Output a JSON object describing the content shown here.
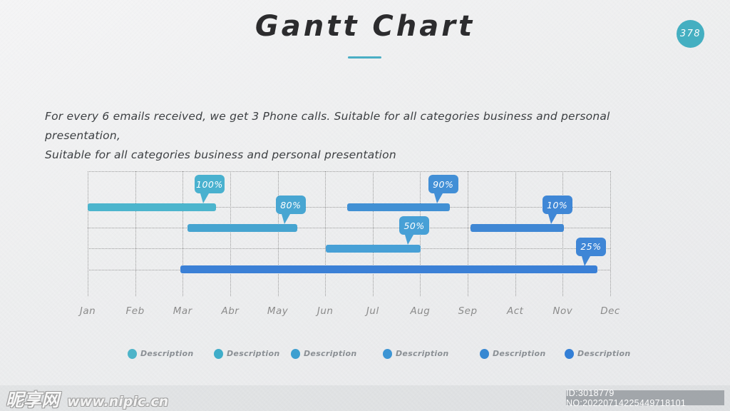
{
  "slide": {
    "title": "Gantt Chart",
    "page_badge": "378",
    "description_line1": "For every 6 emails received, we get 3 Phone calls. Suitable for all categories business and personal presentation,",
    "description_line2": "Suitable for all categories business and personal presentation",
    "accent_color": "#4aaec4"
  },
  "chart_data": {
    "type": "gantt",
    "title": "Gantt Chart",
    "months": [
      "Jan",
      "Feb",
      "Mar",
      "Abr",
      "May",
      "Jun",
      "Jul",
      "Aug",
      "Sep",
      "Act",
      "Nov",
      "Dec"
    ],
    "grid": {
      "rows": 4,
      "style": "dotted"
    },
    "bars": [
      {
        "label": "100%",
        "row": 1,
        "start": 0.0,
        "end": 2.7,
        "color": "#4cb5cd",
        "tooltip_color": "#49b1cf"
      },
      {
        "label": "80%",
        "row": 2,
        "start": 2.1,
        "end": 4.41,
        "color": "#46a4d0",
        "tooltip_color": "#48a6d2"
      },
      {
        "label": "90%",
        "row": 1,
        "start": 5.46,
        "end": 7.62,
        "color": "#4190d4",
        "tooltip_color": "#428fd6"
      },
      {
        "label": "50%",
        "row": 3,
        "start": 5.01,
        "end": 7.01,
        "color": "#47a0d6",
        "tooltip_color": "#47a0d6"
      },
      {
        "label": "10%",
        "row": 2,
        "start": 8.06,
        "end": 10.02,
        "color": "#3f87d4",
        "tooltip_color": "#3f87d6"
      },
      {
        "label": "25%",
        "row": 4,
        "start": 1.95,
        "end": 10.73,
        "color": "#3b80d6",
        "tooltip_color": "#3f86d6"
      }
    ],
    "legend": [
      {
        "label": "Description",
        "color": "#4db4c9"
      },
      {
        "label": "Description",
        "color": "#3fadc9"
      },
      {
        "label": "Description",
        "color": "#3d9fd0"
      },
      {
        "label": "Description",
        "color": "#3d95d4"
      },
      {
        "label": "Description",
        "color": "#3788d2"
      },
      {
        "label": "Description",
        "color": "#337fd6"
      }
    ],
    "legend_position": "bottom"
  },
  "watermark": {
    "site_name": "昵享网",
    "site_url": "www.nipic.cn",
    "id_text": "ID:3018779 NO:20220714225449718101"
  }
}
